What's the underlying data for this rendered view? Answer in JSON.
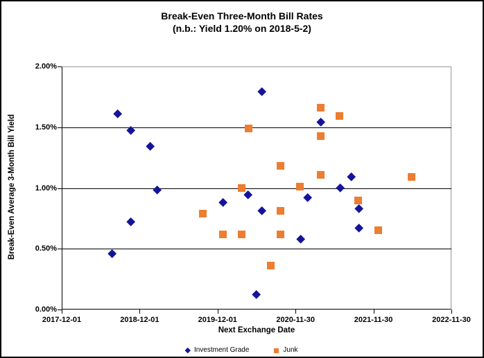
{
  "title": {
    "line1": "Break-Even Three-Month Bill Rates",
    "line2": "(n.b.: Yield 1.20% on 2018-5-2)"
  },
  "colors": {
    "investment_grade": "#14149B",
    "junk": "#ED7D31",
    "gridline": "#000000",
    "plot_border": "#949494",
    "background": "#FFFFFF",
    "text": "#000000"
  },
  "chart_data": {
    "type": "scatter",
    "title": "Break-Even Three-Month Bill Rates",
    "subtitle": "(n.b.: Yield 1.20% on 2018-5-2)",
    "xlabel": "Next Exchange Date",
    "ylabel": "Break-Even Average 3-Month Bill Yield",
    "grid": "horizontal",
    "legend_position": "bottom",
    "x_axis": {
      "min": "2017-12-01",
      "max": "2022-11-30",
      "tick_labels": [
        "2017-12-01",
        "2018-12-01",
        "2019-12-01",
        "2020-11-30",
        "2021-11-30",
        "2022-11-30"
      ]
    },
    "y_axis": {
      "min": 0,
      "max": 2,
      "unit": "%",
      "tick_values": [
        0,
        0.5,
        1,
        1.5,
        2
      ],
      "tick_labels": [
        "0.00%",
        "0.50%",
        "1.00%",
        "1.50%",
        "2.00%"
      ]
    },
    "series": [
      {
        "name": "Investment Grade",
        "marker": "diamond",
        "color": "#14149B",
        "points": [
          {
            "date": "2018-07-25",
            "y": 0.46
          },
          {
            "date": "2018-08-20",
            "y": 1.61
          },
          {
            "date": "2018-10-21",
            "y": 1.47
          },
          {
            "date": "2018-10-22",
            "y": 0.72
          },
          {
            "date": "2019-01-21",
            "y": 1.34
          },
          {
            "date": "2019-02-20",
            "y": 0.98
          },
          {
            "date": "2019-12-28",
            "y": 0.88
          },
          {
            "date": "2020-04-20",
            "y": 0.94
          },
          {
            "date": "2020-05-30",
            "y": 0.12
          },
          {
            "date": "2020-06-26",
            "y": 1.79
          },
          {
            "date": "2020-06-26",
            "y": 0.81
          },
          {
            "date": "2020-12-24",
            "y": 0.58
          },
          {
            "date": "2021-01-26",
            "y": 0.92
          },
          {
            "date": "2021-03-27",
            "y": 1.54
          },
          {
            "date": "2021-06-27",
            "y": 1.0
          },
          {
            "date": "2021-08-19",
            "y": 1.09
          },
          {
            "date": "2021-09-23",
            "y": 0.83
          },
          {
            "date": "2021-09-23",
            "y": 0.67
          }
        ]
      },
      {
        "name": "Junk",
        "marker": "square",
        "color": "#ED7D31",
        "points": [
          {
            "date": "2019-09-22",
            "y": 0.79
          },
          {
            "date": "2019-12-26",
            "y": 0.62
          },
          {
            "date": "2020-03-24",
            "y": 1.0
          },
          {
            "date": "2020-03-24",
            "y": 0.62
          },
          {
            "date": "2020-04-23",
            "y": 1.49
          },
          {
            "date": "2020-08-06",
            "y": 0.36
          },
          {
            "date": "2020-09-22",
            "y": 1.18
          },
          {
            "date": "2020-09-22",
            "y": 0.81
          },
          {
            "date": "2020-09-22",
            "y": 0.62
          },
          {
            "date": "2020-12-22",
            "y": 1.01
          },
          {
            "date": "2021-03-27",
            "y": 1.66
          },
          {
            "date": "2021-03-27",
            "y": 1.43
          },
          {
            "date": "2021-03-27",
            "y": 1.11
          },
          {
            "date": "2021-06-25",
            "y": 1.59
          },
          {
            "date": "2021-09-20",
            "y": 0.9
          },
          {
            "date": "2021-12-24",
            "y": 0.65
          },
          {
            "date": "2022-05-26",
            "y": 1.09
          }
        ]
      }
    ]
  }
}
